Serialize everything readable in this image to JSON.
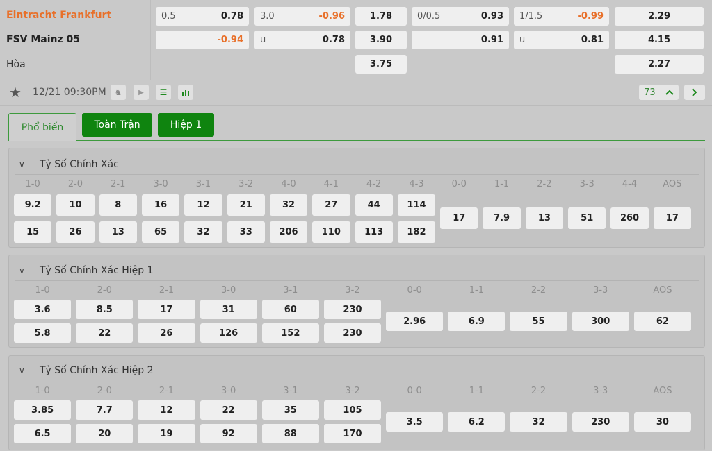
{
  "match": {
    "home": "Eintracht Frankfurt",
    "away": "FSV Mainz 05",
    "draw": "Hòa",
    "time": "12/21 09:30PM",
    "market_count": "73",
    "colors": {
      "home": "#e8702a",
      "negative": "#e8702a",
      "accent": "#0f840f"
    }
  },
  "odds": {
    "ft_hdp": [
      {
        "line": "0.5",
        "value": "0.78"
      },
      {
        "line": "",
        "value": "-0.94"
      }
    ],
    "ft_ou": [
      {
        "line": "3.0",
        "value": "-0.96"
      },
      {
        "line": "u",
        "value": "0.78"
      }
    ],
    "ft_1x2": [
      "1.78",
      "3.90",
      "3.75"
    ],
    "h1_hdp": [
      {
        "line": "0/0.5",
        "value": "0.93"
      },
      {
        "line": "",
        "value": "0.91"
      }
    ],
    "h1_ou": [
      {
        "line": "1/1.5",
        "value": "-0.99"
      },
      {
        "line": "u",
        "value": "0.81"
      }
    ],
    "h1_1x2": [
      "2.29",
      "4.15",
      "2.27"
    ]
  },
  "toolbar_icons": [
    "star-icon",
    "lineup-icon",
    "play-icon",
    "scoreboard-icon",
    "stats-icon",
    "chevron-up-icon",
    "chevron-right-icon"
  ],
  "tabs": [
    "Phổ biến",
    "Toàn Trận",
    "Hiệp 1"
  ],
  "sections": [
    {
      "title": "Tỷ Số Chính Xác",
      "pairs": [
        {
          "label": "1-0",
          "odds": [
            "9.2",
            "15"
          ]
        },
        {
          "label": "2-0",
          "odds": [
            "10",
            "26"
          ]
        },
        {
          "label": "2-1",
          "odds": [
            "8",
            "13"
          ]
        },
        {
          "label": "3-0",
          "odds": [
            "16",
            "65"
          ]
        },
        {
          "label": "3-1",
          "odds": [
            "12",
            "32"
          ]
        },
        {
          "label": "3-2",
          "odds": [
            "21",
            "33"
          ]
        },
        {
          "label": "4-0",
          "odds": [
            "32",
            "206"
          ]
        },
        {
          "label": "4-1",
          "odds": [
            "27",
            "110"
          ]
        },
        {
          "label": "4-2",
          "odds": [
            "44",
            "113"
          ]
        },
        {
          "label": "4-3",
          "odds": [
            "114",
            "182"
          ]
        }
      ],
      "singles": [
        {
          "label": "0-0",
          "odds": "17"
        },
        {
          "label": "1-1",
          "odds": "7.9"
        },
        {
          "label": "2-2",
          "odds": "13"
        },
        {
          "label": "3-3",
          "odds": "51"
        },
        {
          "label": "4-4",
          "odds": "260"
        },
        {
          "label": "AOS",
          "odds": "17"
        }
      ]
    },
    {
      "title": "Tỷ Số Chính Xác Hiệp 1",
      "pairs": [
        {
          "label": "1-0",
          "odds": [
            "3.6",
            "5.8"
          ]
        },
        {
          "label": "2-0",
          "odds": [
            "8.5",
            "22"
          ]
        },
        {
          "label": "2-1",
          "odds": [
            "17",
            "26"
          ]
        },
        {
          "label": "3-0",
          "odds": [
            "31",
            "126"
          ]
        },
        {
          "label": "3-1",
          "odds": [
            "60",
            "152"
          ]
        },
        {
          "label": "3-2",
          "odds": [
            "230",
            "230"
          ]
        }
      ],
      "singles": [
        {
          "label": "0-0",
          "odds": "2.96"
        },
        {
          "label": "1-1",
          "odds": "6.9"
        },
        {
          "label": "2-2",
          "odds": "55"
        },
        {
          "label": "3-3",
          "odds": "300"
        },
        {
          "label": "AOS",
          "odds": "62"
        }
      ]
    },
    {
      "title": "Tỷ Số Chính Xác Hiệp 2",
      "pairs": [
        {
          "label": "1-0",
          "odds": [
            "3.85",
            "6.5"
          ]
        },
        {
          "label": "2-0",
          "odds": [
            "7.7",
            "20"
          ]
        },
        {
          "label": "2-1",
          "odds": [
            "12",
            "19"
          ]
        },
        {
          "label": "3-0",
          "odds": [
            "22",
            "92"
          ]
        },
        {
          "label": "3-1",
          "odds": [
            "35",
            "88"
          ]
        },
        {
          "label": "3-2",
          "odds": [
            "105",
            "170"
          ]
        }
      ],
      "singles": [
        {
          "label": "0-0",
          "odds": "3.5"
        },
        {
          "label": "1-1",
          "odds": "6.2"
        },
        {
          "label": "2-2",
          "odds": "32"
        },
        {
          "label": "3-3",
          "odds": "230"
        },
        {
          "label": "AOS",
          "odds": "30"
        }
      ]
    }
  ]
}
